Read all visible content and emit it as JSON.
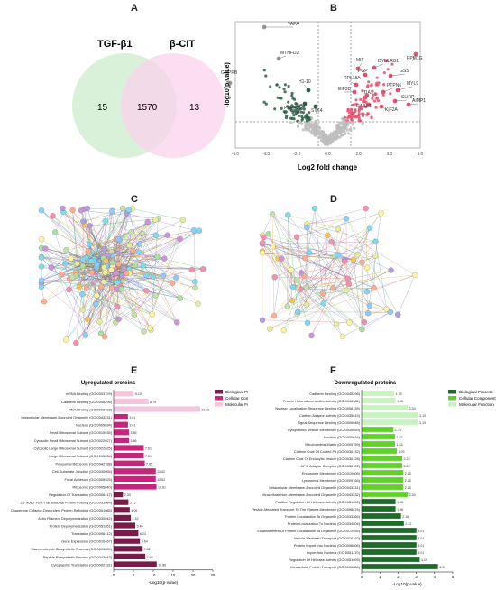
{
  "panels": {
    "a": "A",
    "b": "B",
    "c": "C",
    "d": "D",
    "e": "E",
    "f": "F"
  },
  "venn": {
    "left_label": "TGF-β1",
    "right_label": "β-CIT",
    "left_only": "15",
    "overlap": "1570",
    "right_only": "13",
    "left_color": "#d9f0d9",
    "right_color": "#f9d3ec"
  },
  "volcano": {
    "xlabel": "Log2 fold change",
    "ylabel": "-log10(p-value)",
    "x_ticks": [
      "-6.0",
      "-4.0",
      "-2.0",
      "0.0",
      "2.0",
      "4.0",
      "6.0"
    ],
    "labels": [
      "VAPA",
      "MTHFD2",
      "GMPPB",
      "H1-10",
      "PRPF31",
      "STK4",
      "MIF",
      "DYNLRB1",
      "PPM1G",
      "PGP",
      "GSS",
      "RPL18A",
      "MYL9",
      "PTPN6",
      "EIF3D",
      "TIA1",
      "SLIRP",
      "DARS1",
      "KIF2A",
      "AIMP1"
    ],
    "colors": {
      "up": "#e8516f",
      "down": "#2f5e48",
      "ns": "#bdbdbd"
    }
  },
  "networks": {
    "c_label": "C",
    "d_label": "D"
  },
  "legend": {
    "bp": "Biological Process",
    "cc": "Cellular Component",
    "mf": "Molecular Function"
  },
  "chart_data": [
    {
      "type": "bar",
      "title": "Upregulated proteins",
      "xlabel": "-Log10(p-value)",
      "x_ticks": [
        "0",
        "5",
        "10",
        "15",
        "20",
        "25"
      ],
      "xlim": [
        0,
        25
      ],
      "colors": {
        "bp": "#7a1a4a",
        "cc": "#c5257a",
        "mf": "#f3c6de"
      },
      "categories": [
        "mRNA Binding (GO:0003729)",
        "Cadherin Binding (GO:0045296)",
        "RNA Binding (GO:0003723)",
        "Intracellular Membrane-Bounded Organelle (GO:0043231)",
        "Nucleus (GO:0005634)",
        "Small Ribosomal Subunit (GO:0015935)",
        "Cytosolic Small Ribosomal Subunit (GO:0022627)",
        "Cytosolic Large Ribosomal Subunit (GO:0022625)",
        "Large Ribosomal Subunit (GO:0015934)",
        "Polysomal Ribosome (GO:0042788)",
        "Cell-Substrate Junction (GO:0030055)",
        "Focal Adhesion (GO:0005925)",
        "Ribosome (GO:0005840)",
        "Regulation Of Translation (GO:0006417)",
        "'De Novo' Post-Translational Protein Folding (GO:0051084)",
        "Chaperone Cofactor-Dependent Protein Refolding (GO:0051085)",
        "Actin Filament Depolymerization (GO:0030042)",
        "Protein Depolymerization (GO:0051261)",
        "Translation (GO:0006412)",
        "Gene Expression (GO:0010467)",
        "Macromolecule Biosynthetic Process (GO:0009059)",
        "Peptide Biosynthetic Process (GO:0043043)",
        "Cytoplasmic Translation (GO:0002181)"
      ],
      "groups": [
        "mf",
        "mf",
        "mf",
        "cc",
        "cc",
        "cc",
        "cc",
        "cc",
        "cc",
        "cc",
        "cc",
        "cc",
        "cc",
        "bp",
        "bp",
        "bp",
        "bp",
        "bp",
        "bp",
        "bp",
        "bp",
        "bp",
        "bp"
      ],
      "values": [
        5.1,
        8.79,
        21.81,
        3.61,
        3.61,
        3.86,
        3.86,
        7.61,
        7.61,
        7.85,
        10.62,
        10.62,
        10.81,
        2.35,
        3.72,
        4.06,
        4.33,
        5.46,
        6.23,
        6.64,
        7.32,
        7.98,
        10.86
      ],
      "value_labels": [
        "5.10",
        "8.79",
        "21.81",
        "3.61",
        "3.61",
        "3.86",
        "3.86",
        "7.61",
        "7.61",
        "7.85",
        "10.62",
        "10.62",
        "10.81",
        "2.35",
        "3.72",
        "4.06",
        "4.33",
        "5.46",
        "6.23",
        "6.64",
        "7.32",
        "7.98",
        "10.86"
      ]
    },
    {
      "type": "bar",
      "title": "Downregulated proteins",
      "xlabel": "-Log10(p-value)",
      "x_ticks": [
        "0",
        "1",
        "2",
        "3",
        "4",
        "5"
      ],
      "xlim": [
        0,
        5
      ],
      "colors": {
        "bp": "#1f6b2a",
        "cc": "#5fd22a",
        "mf": "#c8f2c0"
      },
      "categories": [
        "Cadherin Binding (GO:0045296)",
        "Protein Heterodimerization Activity (GO:0046982)",
        "Nuclear Localization Sequence Binding (GO:0008139)",
        "Clathrin Adaptor Activity (GO:0035615)",
        "Signal Sequence Binding (GO:0005048)",
        "Cytoplasmic Vesicle Membrane (GO:0030659)",
        "Nucleus (GO:0005634)",
        "Mitochondrial Matrix (GO:0005759)",
        "Clathrin Coat Of Coated Pit (GO:0030132)",
        "Clathrin Coat Of Endocytic Vesicle (GO:0030128)",
        "AP-2 Adaptor Complex (GO:0030122)",
        "Endosome Membrane (GO:0010008)",
        "Lysosomal Membrane (GO:0005765)",
        "Intracellular Membrane-Bounded Organelle (GO:0043231)",
        "Intracellular Non-Membrane-Bounded Organelle (GO:0043232)",
        "Positive Regulation Of Helicase Activity (GO:0051096)",
        "Vesicle-Mediated Transport To The Plasma Membrane (GO:0098876)",
        "Protein Localization To Organelle (GO:0033365)",
        "Protein Localization To Nucleus (GO:0034504)",
        "Establishment Of Protein Localization To Organelle (GO:0072594)",
        "Vesicle-Mediated Transport (GO:0016192)",
        "Protein Import Into Nucleus (GO:0006606)",
        "Import Into Nucleus (GO:0051170)",
        "Regulation Of Helicase Activity (GO:0051095)",
        "Intracellular Protein Transport (GO:0006886)"
      ],
      "groups": [
        "mf",
        "mf",
        "mf",
        "mf",
        "mf",
        "cc",
        "cc",
        "cc",
        "cc",
        "cc",
        "cc",
        "cc",
        "cc",
        "cc",
        "cc",
        "bp",
        "bp",
        "bp",
        "bp",
        "bp",
        "bp",
        "bp",
        "bp",
        "bp",
        "bp"
      ],
      "values": [
        1.79,
        1.86,
        2.54,
        3.1,
        3.1,
        1.75,
        1.83,
        1.83,
        1.93,
        2.23,
        2.23,
        2.29,
        2.29,
        2.29,
        2.54,
        1.86,
        1.86,
        2.16,
        2.32,
        3.01,
        3.01,
        3.01,
        3.01,
        3.19,
        4.19
      ],
      "value_labels": [
        "1.79",
        "1.86",
        "2.54",
        "3.10",
        "3.10",
        "1.75",
        "1.83",
        "1.83",
        "1.93",
        "2.23",
        "2.23",
        "2.29",
        "2.29",
        "2.29",
        "2.54",
        "1.86",
        "1.86",
        "2.16",
        "2.32",
        "3.01",
        "3.01",
        "3.01",
        "3.01",
        "3.19",
        "4.19"
      ]
    }
  ]
}
